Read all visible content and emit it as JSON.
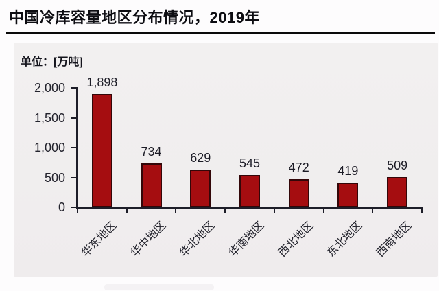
{
  "page": {
    "title": "中国冷库容量地区分布情况，2019年",
    "unit_label": "单位：[万吨]"
  },
  "chart_data": {
    "type": "bar",
    "title": "中国冷库容量地区分布情况，2019年",
    "unit": "万吨",
    "categories": [
      "华东地区",
      "华中地区",
      "华北地区",
      "华南地区",
      "西北地区",
      "东北地区",
      "西南地区"
    ],
    "values": [
      1898,
      734,
      629,
      545,
      472,
      419,
      509
    ],
    "value_labels": [
      "1,898",
      "734",
      "629",
      "545",
      "472",
      "419",
      "509"
    ],
    "ylabel": "万吨",
    "xlabel": "",
    "ylim": [
      0,
      2000
    ],
    "yticks": [
      0,
      500,
      1000,
      1500,
      2000
    ],
    "ytick_labels": [
      "0",
      "500",
      "1,000",
      "1,500",
      "2,000"
    ],
    "grid": false,
    "legend": false,
    "bar_color": "#a50d10",
    "bar_border_color": "#330709",
    "axis_color": "#1d1d28",
    "panel_bg": "#f0edee"
  }
}
